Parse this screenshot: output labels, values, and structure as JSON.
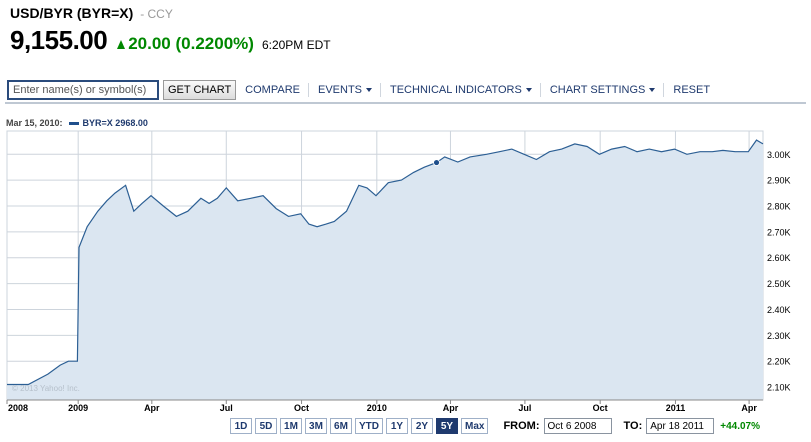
{
  "quote": {
    "symbol_line": "USD/BYR (BYR=X)",
    "exchange": "- CCY",
    "price": "9,155.00",
    "change": "20.00",
    "change_pct": "(0.2200%)",
    "time": "6:20PM EDT",
    "change_color": "#008800"
  },
  "toolbar": {
    "search_placeholder": "Enter name(s) or symbol(s)",
    "get_chart": "GET CHART",
    "compare": "COMPARE",
    "events": "EVENTS",
    "technical": "TECHNICAL INDICATORS",
    "chart_settings": "CHART SETTINGS",
    "reset": "RESET"
  },
  "legend": {
    "date": "Mar 15, 2010:",
    "series": "BYR=X 2968.00"
  },
  "watermark": "© 2013 Yahoo! Inc.",
  "range_buttons": [
    "1D",
    "5D",
    "1M",
    "3M",
    "6M",
    "YTD",
    "1Y",
    "2Y",
    "5Y",
    "Max"
  ],
  "range_active": "5Y",
  "dates": {
    "from_label": "FROM:",
    "from_value": "Oct 6 2008",
    "to_label": "TO:",
    "to_value": "Apr 18 2011",
    "pct": "+44.07%"
  },
  "colors": {
    "line": "#2c5f94",
    "fill": "#dbe6f1",
    "grid": "#cdd4dc",
    "axis_text": "#000000"
  },
  "chart_data": {
    "type": "area",
    "series": [
      {
        "name": "BYR=X",
        "x": [
          "2008-10-06",
          "2008-11-01",
          "2008-11-25",
          "2008-12-10",
          "2008-12-20",
          "2008-12-31",
          "2009-01-02",
          "2009-01-12",
          "2009-01-25",
          "2009-02-05",
          "2009-02-15",
          "2009-02-28",
          "2009-03-10",
          "2009-03-20",
          "2009-03-31",
          "2009-04-15",
          "2009-05-01",
          "2009-05-15",
          "2009-05-31",
          "2009-06-10",
          "2009-06-20",
          "2009-07-01",
          "2009-07-15",
          "2009-07-31",
          "2009-08-15",
          "2009-08-31",
          "2009-09-15",
          "2009-09-30",
          "2009-10-10",
          "2009-10-20",
          "2009-10-31",
          "2009-11-10",
          "2009-11-25",
          "2009-12-10",
          "2009-12-20",
          "2009-12-31",
          "2010-01-15",
          "2010-01-31",
          "2010-02-15",
          "2010-02-28",
          "2010-03-15",
          "2010-03-25",
          "2010-04-10",
          "2010-04-25",
          "2010-05-15",
          "2010-05-31",
          "2010-06-15",
          "2010-06-30",
          "2010-07-15",
          "2010-07-31",
          "2010-08-15",
          "2010-08-31",
          "2010-09-15",
          "2010-09-30",
          "2010-10-15",
          "2010-10-31",
          "2010-11-15",
          "2010-11-30",
          "2010-12-15",
          "2010-12-31",
          "2011-01-15",
          "2011-01-31",
          "2011-02-15",
          "2011-02-28",
          "2011-03-15",
          "2011-03-31",
          "2011-04-10",
          "2011-04-18"
        ],
        "y": [
          2110,
          2110,
          2150,
          2185,
          2200,
          2200,
          2640,
          2720,
          2780,
          2820,
          2850,
          2880,
          2780,
          2810,
          2840,
          2800,
          2760,
          2780,
          2830,
          2810,
          2830,
          2870,
          2820,
          2830,
          2840,
          2790,
          2760,
          2770,
          2730,
          2720,
          2730,
          2740,
          2780,
          2880,
          2870,
          2840,
          2890,
          2900,
          2930,
          2950,
          2968,
          2990,
          2970,
          2990,
          3000,
          3010,
          3020,
          3000,
          2980,
          3010,
          3020,
          3040,
          3030,
          3000,
          3020,
          3030,
          3010,
          3020,
          3010,
          3020,
          3000,
          3010,
          3010,
          3015,
          3010,
          3010,
          3055,
          3040
        ]
      }
    ],
    "marker": {
      "x": "2010-03-15",
      "y": 2968
    },
    "xlim": [
      "2008-10-06",
      "2011-04-18"
    ],
    "ylim": [
      2050,
      3090
    ],
    "y_ticks": [
      2100,
      2200,
      2300,
      2400,
      2500,
      2600,
      2700,
      2800,
      2900,
      3000
    ],
    "y_tick_labels": [
      "2.10K",
      "2.20K",
      "2.30K",
      "2.40K",
      "2.50K",
      "2.60K",
      "2.70K",
      "2.80K",
      "2.90K",
      "3.00K"
    ],
    "x_ticks": [
      {
        "date": "2008-10-06",
        "label": "2008"
      },
      {
        "date": "2009-01-01",
        "label": "2009"
      },
      {
        "date": "2009-04-01",
        "label": "Apr"
      },
      {
        "date": "2009-07-01",
        "label": "Jul"
      },
      {
        "date": "2009-10-01",
        "label": "Oct"
      },
      {
        "date": "2010-01-01",
        "label": "2010"
      },
      {
        "date": "2010-04-01",
        "label": "Apr"
      },
      {
        "date": "2010-07-01",
        "label": "Jul"
      },
      {
        "date": "2010-10-01",
        "label": "Oct"
      },
      {
        "date": "2011-01-01",
        "label": "2011"
      },
      {
        "date": "2011-04-01",
        "label": "Apr"
      }
    ],
    "y_axis_side": "right",
    "grid": true,
    "title": "",
    "xlabel": "",
    "ylabel": ""
  }
}
